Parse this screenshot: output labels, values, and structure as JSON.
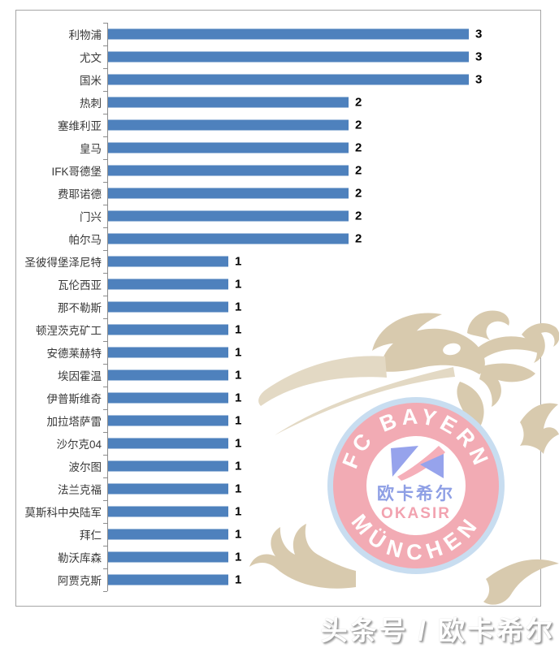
{
  "chart_data": {
    "type": "bar",
    "orientation": "horizontal",
    "title": "",
    "xlabel": "",
    "ylabel": "",
    "categories": [
      "利物浦",
      "尤文",
      "国米",
      "热刺",
      "塞维利亚",
      "皇马",
      "IFK哥德堡",
      "费耶诺德",
      "门兴",
      "帕尔马",
      "圣彼得堡泽尼特",
      "瓦伦西亚",
      "那不勒斯",
      "顿涅茨克矿工",
      "安德莱赫特",
      "埃因霍温",
      "伊普斯维奇",
      "加拉塔萨雷",
      "沙尔克04",
      "波尔图",
      "法兰克福",
      "莫斯科中央陆军",
      "拜仁",
      "勒沃库森",
      "阿贾克斯"
    ],
    "values": [
      3,
      3,
      3,
      2,
      2,
      2,
      2,
      2,
      2,
      2,
      1,
      1,
      1,
      1,
      1,
      1,
      1,
      1,
      1,
      1,
      1,
      1,
      1,
      1,
      1
    ],
    "xlim": [
      0,
      3
    ],
    "bar_color": "#4E81BD",
    "data_labels": true,
    "grid": false,
    "legend": false
  },
  "watermark": {
    "badge": {
      "arc_top_text": "FC BAYERN",
      "arc_bottom_text": "MÜNCHEN",
      "center_text_cn": "欧卡希尔",
      "center_text_en": "OKASIR",
      "outer_ring_color": "#C8DDF0",
      "ring_color": "#F2ABB4",
      "inner_circle_color": "#FFFFFF",
      "arc_text_color": "#FFFFFF",
      "accent_blue": "#96A3EC",
      "accent_pink": "#F5AFB9",
      "cn_text_color": "#8E9FE5",
      "en_text_color": "#F2A3B0"
    },
    "dragon_color": "#D8CAAE",
    "dragon_light_color": "#E3D9C4"
  },
  "footer": {
    "text": "头条号 / 欧卡希尔"
  }
}
